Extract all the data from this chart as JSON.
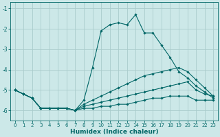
{
  "xlabel": "Humidex (Indice chaleur)",
  "bg_color": "#cce8e8",
  "grid_color": "#aacccc",
  "line_color": "#006666",
  "xlim": [
    -0.5,
    23.5
  ],
  "ylim": [
    -6.5,
    -0.7
  ],
  "yticks": [
    -6,
    -5,
    -4,
    -3,
    -2,
    -1
  ],
  "xticks": [
    0,
    1,
    2,
    3,
    4,
    5,
    6,
    7,
    8,
    9,
    10,
    11,
    12,
    13,
    14,
    15,
    16,
    17,
    18,
    19,
    20,
    21,
    22,
    23
  ],
  "series": [
    {
      "x": [
        0,
        1,
        2,
        3,
        4,
        5,
        6,
        7,
        8,
        9,
        10,
        11,
        12,
        13,
        14,
        15,
        16,
        17,
        18,
        19,
        20,
        21,
        22,
        23
      ],
      "y": [
        -5.0,
        -5.2,
        -5.4,
        -5.9,
        -5.9,
        -5.9,
        -5.9,
        -6.0,
        -5.9,
        -5.9,
        -5.8,
        -5.8,
        -5.7,
        -5.7,
        -5.6,
        -5.5,
        -5.4,
        -5.4,
        -5.3,
        -5.3,
        -5.3,
        -5.5,
        -5.5,
        -5.5
      ]
    },
    {
      "x": [
        0,
        1,
        2,
        3,
        4,
        5,
        6,
        7,
        8,
        9,
        10,
        11,
        12,
        13,
        14,
        15,
        16,
        17,
        18,
        19,
        20,
        21,
        22,
        23
      ],
      "y": [
        -5.0,
        -5.2,
        -5.4,
        -5.9,
        -5.9,
        -5.9,
        -5.9,
        -6.0,
        -5.8,
        -5.7,
        -5.6,
        -5.5,
        -5.4,
        -5.3,
        -5.2,
        -5.1,
        -5.0,
        -4.9,
        -4.8,
        -4.7,
        -4.6,
        -5.0,
        -5.2,
        -5.3
      ]
    },
    {
      "x": [
        0,
        1,
        2,
        3,
        4,
        5,
        6,
        7,
        8,
        9,
        10,
        11,
        12,
        13,
        14,
        15,
        16,
        17,
        18,
        19,
        20,
        21,
        22,
        23
      ],
      "y": [
        -5.0,
        -5.2,
        -5.4,
        -5.9,
        -5.9,
        -5.9,
        -5.9,
        -6.0,
        -5.7,
        -5.5,
        -5.3,
        -5.1,
        -4.9,
        -4.7,
        -4.5,
        -4.3,
        -4.2,
        -4.1,
        -4.0,
        -3.9,
        -4.1,
        -4.5,
        -4.9,
        -5.3
      ]
    },
    {
      "x": [
        0,
        1,
        2,
        3,
        4,
        5,
        6,
        7,
        8,
        9,
        10,
        11,
        12,
        13,
        14,
        15,
        16,
        17,
        18,
        19,
        20,
        21,
        22,
        23
      ],
      "y": [
        -5.0,
        -5.2,
        -5.4,
        -5.9,
        -5.9,
        -5.9,
        -5.9,
        -6.0,
        -5.5,
        -3.9,
        -2.1,
        -1.8,
        -1.7,
        -1.8,
        -1.3,
        -2.2,
        -2.2,
        -2.8,
        -3.4,
        -4.1,
        -4.4,
        -4.8,
        -5.1,
        -5.4
      ]
    }
  ]
}
